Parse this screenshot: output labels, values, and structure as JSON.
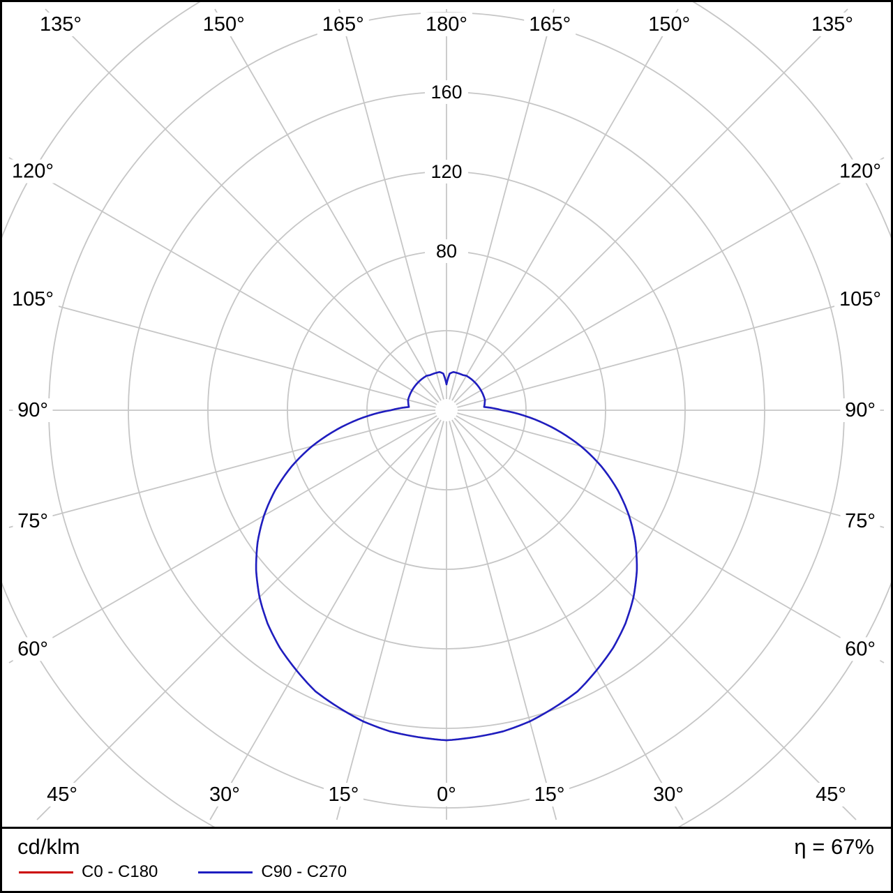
{
  "chart_data": {
    "type": "polar",
    "description": "Luminous intensity distribution polar curve",
    "unit_label": "cd/klm",
    "efficiency_label": "η = 67%",
    "grid_color": "#c6c6c6",
    "rings": [
      40,
      80,
      120,
      160,
      200,
      240
    ],
    "ring_label_values": [
      80,
      120,
      160
    ],
    "ring_step": 40,
    "ylim": [
      0,
      200
    ],
    "angle_step_deg": 15,
    "gamma_start_deg": 0,
    "gamma_step_deg": 5,
    "angle_labels": [
      {
        "angle": 0,
        "label": "0°"
      },
      {
        "angle": 15,
        "label": "15°"
      },
      {
        "angle": -15,
        "label": "15°"
      },
      {
        "angle": 30,
        "label": "30°"
      },
      {
        "angle": -30,
        "label": "30°"
      },
      {
        "angle": 45,
        "label": "45°"
      },
      {
        "angle": -45,
        "label": "45°"
      },
      {
        "angle": 60,
        "label": "60°"
      },
      {
        "angle": -60,
        "label": "60°"
      },
      {
        "angle": 75,
        "label": "75°"
      },
      {
        "angle": -75,
        "label": "75°"
      },
      {
        "angle": 90,
        "label": "90°"
      },
      {
        "angle": -90,
        "label": "90°"
      },
      {
        "angle": 105,
        "label": "105°"
      },
      {
        "angle": -105,
        "label": "105°"
      },
      {
        "angle": 120,
        "label": "120°"
      },
      {
        "angle": -120,
        "label": "120°"
      },
      {
        "angle": 135,
        "label": "135°"
      },
      {
        "angle": -135,
        "label": "135°"
      },
      {
        "angle": 150,
        "label": "150°"
      },
      {
        "angle": -150,
        "label": "150°"
      },
      {
        "angle": 165,
        "label": "165°"
      },
      {
        "angle": -165,
        "label": "165°"
      },
      {
        "angle": 180,
        "label": "180°"
      }
    ],
    "series": [
      {
        "name": "C0 - C180",
        "color": "#cc0000",
        "values": [
          166,
          165,
          164,
          162,
          159,
          156,
          151,
          146,
          140,
          133,
          125,
          116,
          106,
          95,
          83,
          70,
          56,
          42,
          28,
          19,
          19.5,
          20,
          20,
          20,
          20,
          20,
          20,
          20,
          20,
          20,
          20,
          19.5,
          19.5,
          19.5,
          19.5,
          18.5,
          13
        ]
      },
      {
        "name": "C90 - C270",
        "color": "#1e1ec0",
        "values": [
          166,
          165,
          164,
          162,
          159,
          156,
          151,
          146,
          140,
          133,
          125,
          116,
          106,
          95,
          83,
          70,
          56,
          42,
          28,
          19,
          19.5,
          20,
          20,
          20,
          20,
          20,
          20,
          20,
          20,
          20,
          20,
          19.5,
          19.5,
          19.5,
          19.5,
          18.5,
          13
        ]
      }
    ]
  }
}
